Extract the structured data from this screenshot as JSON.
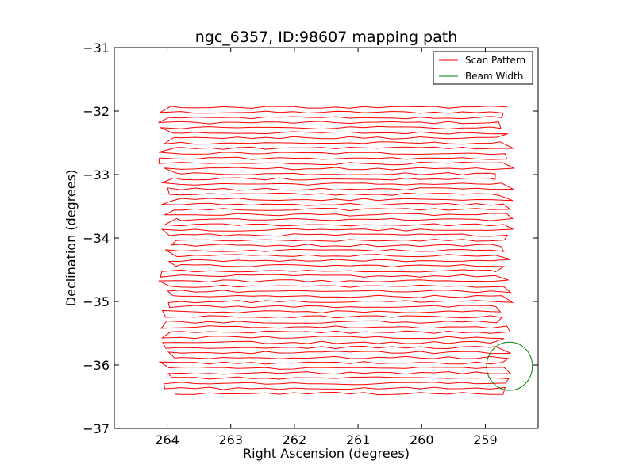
{
  "chart_data": {
    "type": "line",
    "title": "ngc_6357, ID:98607 mapping path",
    "xlabel": "Right Ascension (degrees)",
    "ylabel": "Declination (degrees)",
    "xlim": [
      264.83,
      258.17
    ],
    "ylim": [
      -37,
      -31
    ],
    "x_ticks": [
      264,
      263,
      262,
      261,
      260,
      259
    ],
    "x_tick_labels": [
      "264",
      "263",
      "262",
      "261",
      "260",
      "259"
    ],
    "y_ticks": [
      -31,
      -32,
      -33,
      -34,
      -35,
      -36,
      -37
    ],
    "y_tick_labels": [
      "−31",
      "−32",
      "−33",
      "−34",
      "−35",
      "−36",
      "−37"
    ],
    "grid": false,
    "legend_position": "top-right",
    "series": [
      {
        "name": "Scan Pattern",
        "color": "#ff0000",
        "scan": {
          "ra_west": 258.7,
          "ra_east": 264.0,
          "dec_start": -31.94,
          "dec_end": -36.45,
          "rows": 57
        }
      },
      {
        "name": "Beam Width",
        "color": "#008000",
        "circle": {
          "ra_center": 258.62,
          "dec_center": -36.02,
          "ra_radius": 0.36,
          "dec_radius": 0.38
        }
      }
    ]
  }
}
